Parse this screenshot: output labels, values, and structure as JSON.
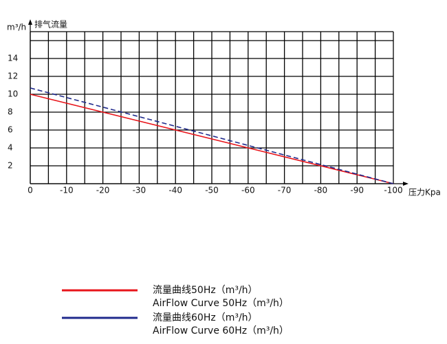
{
  "chart_data": {
    "type": "line",
    "y_unit": "m³/h",
    "ylabel": "排气流量",
    "xlabel": "压力Kpa",
    "xlim": [
      0,
      -100
    ],
    "ylim": [
      0,
      17
    ],
    "xticks": [
      0,
      -10,
      -20,
      -30,
      -40,
      -50,
      -60,
      -70,
      -80,
      -90,
      -100
    ],
    "yticks": [
      2,
      4,
      6,
      8,
      10,
      12,
      14
    ],
    "xgrid": [
      0,
      -5,
      -10,
      -15,
      -20,
      -25,
      -30,
      -35,
      -40,
      -45,
      -50,
      -55,
      -60,
      -65,
      -70,
      -75,
      -80,
      -85,
      -90,
      -95,
      -100
    ],
    "ygrid": [
      0,
      2,
      4,
      6,
      8,
      10,
      12,
      14,
      16,
      17
    ],
    "x": [
      0,
      -100
    ],
    "series": [
      {
        "name": "流量曲线50Hz（m³/h）",
        "name_en": "AirFlow Curve 50Hz（m³/h）",
        "color": "#e8151b",
        "dash": false,
        "values": [
          10,
          0
        ]
      },
      {
        "name": "流量曲线60Hz（m³/h）",
        "name_en": "AirFlow Curve 60Hz（m³/h）",
        "color": "#1f2a8c",
        "dash": true,
        "values": [
          10.7,
          0
        ]
      }
    ]
  }
}
